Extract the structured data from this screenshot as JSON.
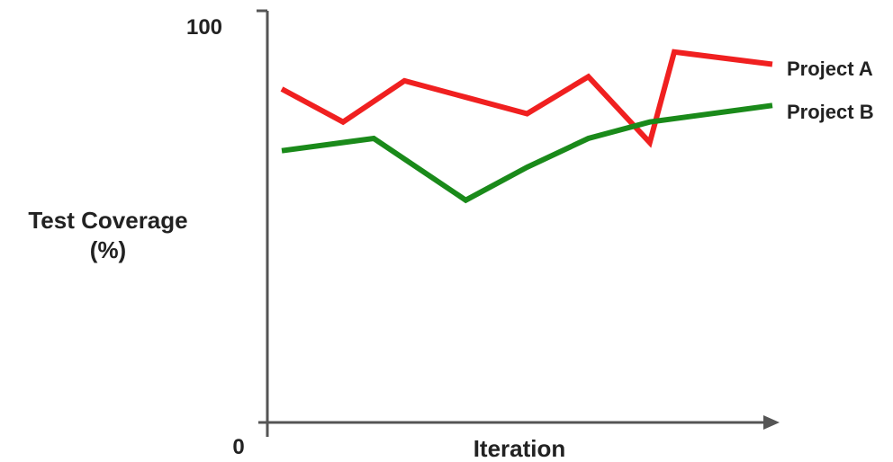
{
  "chart_data": {
    "type": "line",
    "xlabel": "Iteration",
    "ylabel_line1": "Test Coverage",
    "ylabel_line2": "(%)",
    "ylim": [
      0,
      100
    ],
    "ytick_top": "100",
    "ytick_bottom": "0",
    "grid": false,
    "legend_placement": "right, at line ends",
    "series": [
      {
        "name": "Project A",
        "legend_label": "Project A",
        "color": "#f02020",
        "points": [
          {
            "x": 1,
            "y": 81
          },
          {
            "x": 2,
            "y": 73
          },
          {
            "x": 3,
            "y": 83
          },
          {
            "x": 4,
            "y": 79
          },
          {
            "x": 5,
            "y": 75
          },
          {
            "x": 6,
            "y": 84
          },
          {
            "x": 7,
            "y": 68
          },
          {
            "x": 7.4,
            "y": 90
          },
          {
            "x": 9,
            "y": 87
          }
        ]
      },
      {
        "name": "Project B",
        "legend_label": "Project B",
        "color": "#1a8a1a",
        "points": [
          {
            "x": 1,
            "y": 66
          },
          {
            "x": 2.5,
            "y": 69
          },
          {
            "x": 4,
            "y": 54
          },
          {
            "x": 5,
            "y": 62
          },
          {
            "x": 6,
            "y": 69
          },
          {
            "x": 7,
            "y": 73
          },
          {
            "x": 9,
            "y": 77
          }
        ]
      }
    ]
  }
}
